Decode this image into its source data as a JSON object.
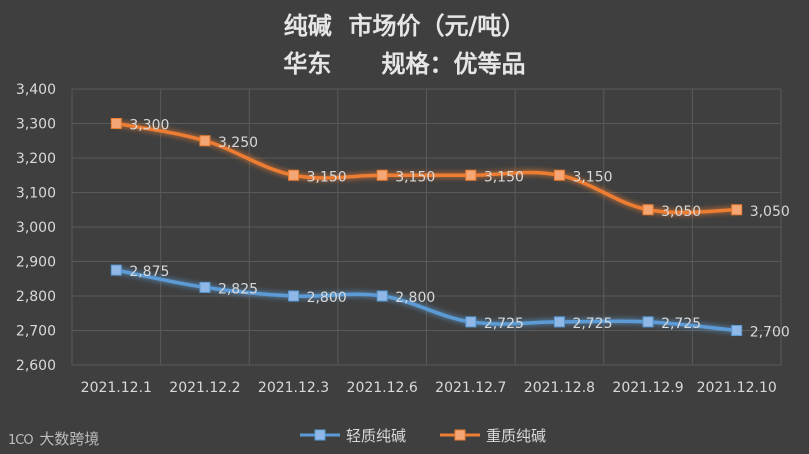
{
  "title_lines": [
    "纯碱  市场价（元/吨）",
    "华东      规格：优等品"
  ],
  "watermark": {
    "logo": "1CO",
    "text": "大数跨境"
  },
  "colors": {
    "background": "#3f3f3f",
    "grid": "#5a5a5a",
    "axis_text": "#d9d9d9",
    "light_series": "#5b9bd5",
    "heavy_series": "#ed7d31"
  },
  "chart_data": {
    "type": "line",
    "categories": [
      "2021.12.1",
      "2021.12.2",
      "2021.12.3",
      "2021.12.6",
      "2021.12.7",
      "2021.12.8",
      "2021.12.9",
      "2021.12.10"
    ],
    "series": [
      {
        "name": "轻质纯碱",
        "values": [
          2875,
          2825,
          2800,
          2800,
          2725,
          2725,
          2725,
          2700
        ],
        "labels": [
          "2,875",
          "2,825",
          "2,800",
          "2,800",
          "2,725",
          "2,725",
          "2,725",
          "2,700"
        ]
      },
      {
        "name": "重质纯碱",
        "values": [
          3300,
          3250,
          3150,
          3150,
          3150,
          3150,
          3050,
          3050
        ],
        "labels": [
          "3,300",
          "3,250",
          "3,150",
          "3,150",
          "3,150",
          "3,150",
          "3,050",
          "3,050"
        ]
      }
    ],
    "ylim": [
      2600,
      3400
    ],
    "yticks": [
      "2,600",
      "2,700",
      "2,800",
      "2,900",
      "3,000",
      "3,100",
      "3,200",
      "3,300",
      "3,400"
    ],
    "ytick_values": [
      2600,
      2700,
      2800,
      2900,
      3000,
      3100,
      3200,
      3300,
      3400
    ],
    "grid": true,
    "smooth": true,
    "legend_position": "bottom-center"
  }
}
